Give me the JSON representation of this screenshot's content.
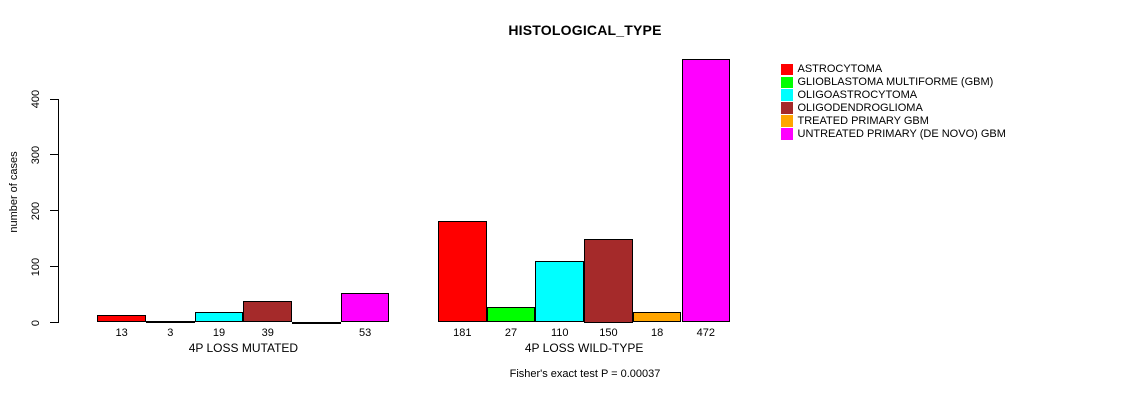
{
  "chart_data": {
    "type": "bar",
    "title": "HISTOLOGICAL_TYPE",
    "ylabel": "number of cases",
    "xlabel": "",
    "yticks": [
      0,
      100,
      200,
      300,
      400
    ],
    "ylim": [
      0,
      480
    ],
    "grid": false,
    "legend_position": "right-top",
    "bar_borders": true,
    "value_labels_shown": true,
    "zero_value_labels_hidden": true,
    "categories": [
      "4P LOSS MUTATED",
      "4P LOSS WILD-TYPE"
    ],
    "series": [
      {
        "name": "ASTROCYTOMA",
        "color": "#ff0000",
        "values": [
          13,
          181
        ]
      },
      {
        "name": "GLIOBLASTOMA MULTIFORME (GBM)",
        "color": "#00ff00",
        "values": [
          3,
          27
        ]
      },
      {
        "name": "OLIGOASTROCYTOMA",
        "color": "#00ffff",
        "values": [
          19,
          110
        ]
      },
      {
        "name": "OLIGODENDROGLIOMA",
        "color": "#a52a2a",
        "values": [
          39,
          150
        ]
      },
      {
        "name": "TREATED PRIMARY GBM",
        "color": "#ffa500",
        "values": [
          0,
          18
        ]
      },
      {
        "name": "UNTREATED PRIMARY (DE NOVO) GBM",
        "color": "#ff00ff",
        "values": [
          53,
          472
        ]
      }
    ],
    "footer": "Fisher's exact test P = 0.00037"
  }
}
